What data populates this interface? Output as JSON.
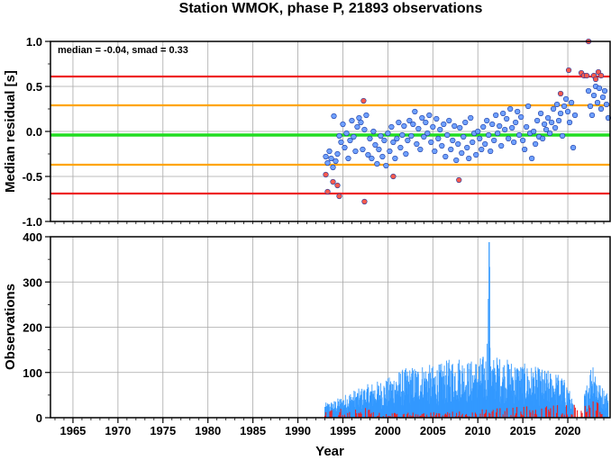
{
  "chart_data": {
    "title": "Station WMOK, phase P, 21893 observations",
    "xlabel": "Year",
    "x_ticks": [
      "1965",
      "1970",
      "1975",
      "1980",
      "1985",
      "1990",
      "1995",
      "2000",
      "2005",
      "2010",
      "2015",
      "2020"
    ],
    "xlim": [
      1962.5,
      2024.7
    ],
    "grid": true,
    "panels": [
      {
        "type": "scatter",
        "ylabel": "Median residual [s]",
        "ylim": [
          -1.0,
          1.0
        ],
        "y_ticks": [
          "-1.0",
          "-0.5",
          "0.0",
          "0.5",
          "1.0"
        ],
        "annotation": "median = -0.04, smad = 0.33",
        "reference_lines": [
          {
            "name": "median",
            "y": -0.04,
            "color": "#22dd22"
          },
          {
            "name": "+1 smad",
            "y": 0.29,
            "color": "#ffa500"
          },
          {
            "name": "-1 smad",
            "y": -0.37,
            "color": "#ffa500"
          },
          {
            "name": "+2 smad",
            "y": 0.61,
            "color": "#ee2222"
          },
          {
            "name": "-2 smad",
            "y": -0.69,
            "color": "#ee2222"
          }
        ],
        "series": [
          {
            "color": "#6fa0ff",
            "points": [
              [
                1993.1,
                -0.28
              ],
              [
                1993.3,
                -0.35
              ],
              [
                1993.5,
                -0.22
              ],
              [
                1993.7,
                -0.3
              ],
              [
                1993.9,
                -0.4
              ],
              [
                1994.0,
                0.17
              ],
              [
                1994.2,
                -0.33
              ],
              [
                1994.4,
                -0.25
              ],
              [
                1994.6,
                -0.05
              ],
              [
                1994.8,
                -0.12
              ],
              [
                1995.0,
                0.08
              ],
              [
                1995.2,
                -0.18
              ],
              [
                1995.4,
                -0.02
              ],
              [
                1995.6,
                -0.3
              ],
              [
                1995.8,
                -0.1
              ],
              [
                1996.0,
                0.12
              ],
              [
                1996.2,
                -0.06
              ],
              [
                1996.4,
                -0.22
              ],
              [
                1996.6,
                0.05
              ],
              [
                1996.8,
                0.15
              ],
              [
                1997.0,
                0.1
              ],
              [
                1997.2,
                -0.2
              ],
              [
                1997.4,
                0.02
              ],
              [
                1997.6,
                0.18
              ],
              [
                1997.8,
                -0.26
              ],
              [
                1998.0,
                -0.08
              ],
              [
                1998.2,
                -0.3
              ],
              [
                1998.4,
                0.0
              ],
              [
                1998.6,
                -0.15
              ],
              [
                1998.8,
                -0.36
              ],
              [
                1999.0,
                -0.2
              ],
              [
                1999.2,
                -0.05
              ],
              [
                1999.4,
                -0.28
              ],
              [
                1999.6,
                -0.1
              ],
              [
                1999.8,
                -0.38
              ],
              [
                2000.0,
                -0.02
              ],
              [
                2000.2,
                -0.22
              ],
              [
                2000.4,
                0.05
              ],
              [
                2000.6,
                -0.12
              ],
              [
                2000.8,
                -0.3
              ],
              [
                2001.0,
                -0.08
              ],
              [
                2001.2,
                0.1
              ],
              [
                2001.4,
                -0.18
              ],
              [
                2001.6,
                -0.04
              ],
              [
                2001.8,
                0.06
              ],
              [
                2002.0,
                -0.25
              ],
              [
                2002.2,
                -0.1
              ],
              [
                2002.4,
                0.12
              ],
              [
                2002.6,
                -0.05
              ],
              [
                2002.8,
                0.08
              ],
              [
                2003.0,
                0.22
              ],
              [
                2003.2,
                -0.14
              ],
              [
                2003.4,
                0.03
              ],
              [
                2003.6,
                -0.2
              ],
              [
                2003.8,
                0.15
              ],
              [
                2004.0,
                -0.06
              ],
              [
                2004.2,
                0.1
              ],
              [
                2004.4,
                -0.02
              ],
              [
                2004.6,
                0.18
              ],
              [
                2004.8,
                -0.12
              ],
              [
                2005.0,
                0.05
              ],
              [
                2005.2,
                -0.22
              ],
              [
                2005.4,
                0.14
              ],
              [
                2005.6,
                -0.08
              ],
              [
                2005.8,
                0.02
              ],
              [
                2006.0,
                -0.16
              ],
              [
                2006.2,
                0.08
              ],
              [
                2006.4,
                -0.28
              ],
              [
                2006.6,
                -0.04
              ],
              [
                2006.8,
                0.12
              ],
              [
                2007.0,
                -0.2
              ],
              [
                2007.2,
                -0.1
              ],
              [
                2007.4,
                0.06
              ],
              [
                2007.6,
                -0.32
              ],
              [
                2007.8,
                -0.14
              ],
              [
                2008.0,
                0.04
              ],
              [
                2008.2,
                -0.24
              ],
              [
                2008.4,
                -0.06
              ],
              [
                2008.6,
                0.1
              ],
              [
                2008.8,
                -0.18
              ],
              [
                2009.0,
                -0.3
              ],
              [
                2009.2,
                0.15
              ],
              [
                2009.4,
                -0.12
              ],
              [
                2009.6,
                -0.02
              ],
              [
                2009.8,
                -0.26
              ],
              [
                2010.0,
                0.0
              ],
              [
                2010.2,
                -0.08
              ],
              [
                2010.4,
                -0.2
              ],
              [
                2010.6,
                0.05
              ],
              [
                2010.8,
                -0.14
              ],
              [
                2011.0,
                0.12
              ],
              [
                2011.2,
                -0.04
              ],
              [
                2011.4,
                -0.22
              ],
              [
                2011.6,
                0.08
              ],
              [
                2011.8,
                -0.1
              ],
              [
                2012.0,
                0.18
              ],
              [
                2012.2,
                -0.02
              ],
              [
                2012.4,
                0.06
              ],
              [
                2012.6,
                -0.16
              ],
              [
                2012.8,
                0.2
              ],
              [
                2013.0,
                0.02
              ],
              [
                2013.2,
                0.14
              ],
              [
                2013.4,
                -0.08
              ],
              [
                2013.6,
                0.25
              ],
              [
                2013.8,
                0.04
              ],
              [
                2014.0,
                -0.12
              ],
              [
                2014.2,
                0.1
              ],
              [
                2014.4,
                0.22
              ],
              [
                2014.6,
                -0.04
              ],
              [
                2014.8,
                0.16
              ],
              [
                2015.0,
                -0.1
              ],
              [
                2015.2,
                -0.2
              ],
              [
                2015.4,
                0.05
              ],
              [
                2015.6,
                0.28
              ],
              [
                2015.8,
                -0.02
              ],
              [
                2016.0,
                -0.3
              ],
              [
                2016.2,
                0.0
              ],
              [
                2016.4,
                -0.14
              ],
              [
                2016.6,
                0.12
              ],
              [
                2016.8,
                -0.06
              ],
              [
                2017.0,
                0.2
              ],
              [
                2017.2,
                -0.08
              ],
              [
                2017.4,
                0.08
              ],
              [
                2017.6,
                0.02
              ],
              [
                2017.8,
                0.15
              ],
              [
                2018.0,
                -0.02
              ],
              [
                2018.2,
                0.1
              ],
              [
                2018.4,
                0.25
              ],
              [
                2018.6,
                0.04
              ],
              [
                2018.8,
                0.3
              ],
              [
                2019.0,
                0.12
              ],
              [
                2019.2,
                0.2
              ],
              [
                2019.4,
                -0.05
              ],
              [
                2019.6,
                0.28
              ],
              [
                2019.8,
                0.36
              ],
              [
                2020.0,
                0.22
              ],
              [
                2020.2,
                0.1
              ],
              [
                2020.4,
                0.32
              ],
              [
                2020.6,
                -0.18
              ],
              [
                2020.8,
                0.18
              ],
              [
                2022.3,
                0.45
              ],
              [
                2022.5,
                0.28
              ],
              [
                2022.7,
                0.18
              ],
              [
                2022.9,
                0.4
              ],
              [
                2023.1,
                0.5
              ],
              [
                2023.3,
                0.32
              ],
              [
                2023.5,
                0.48
              ],
              [
                2023.7,
                0.25
              ],
              [
                2023.9,
                0.38
              ],
              [
                2024.1,
                0.45
              ],
              [
                2024.3,
                0.3
              ],
              [
                2024.5,
                0.15
              ]
            ]
          },
          {
            "color": "#ff5a4d",
            "points": [
              [
                1993.1,
                -0.48
              ],
              [
                1993.3,
                -0.67
              ],
              [
                1993.9,
                -0.56
              ],
              [
                1994.4,
                -0.6
              ],
              [
                1994.6,
                -0.72
              ],
              [
                1997.3,
                0.34
              ],
              [
                1997.4,
                -0.78
              ],
              [
                2000.6,
                -0.5
              ],
              [
                2007.9,
                -0.54
              ],
              [
                2019.2,
                0.42
              ],
              [
                2021.5,
                0.65
              ],
              [
                2021.8,
                0.62
              ],
              [
                2022.1,
                0.62
              ],
              [
                2022.3,
                1.0
              ],
              [
                2022.9,
                0.62
              ],
              [
                2023.1,
                0.58
              ],
              [
                2023.4,
                0.66
              ],
              [
                2023.7,
                0.62
              ],
              [
                2020.1,
                0.68
              ]
            ]
          }
        ]
      },
      {
        "type": "bar",
        "ylabel": "Observations",
        "ylim": [
          0,
          400
        ],
        "y_ticks": [
          "0",
          "100",
          "200",
          "300",
          "400"
        ],
        "series": [
          {
            "color": "#3399ff",
            "note": "observations per period",
            "envelope": [
              [
                1993.0,
                30
              ],
              [
                1994.0,
                35
              ],
              [
                1995.0,
                45
              ],
              [
                1996.0,
                55
              ],
              [
                1997.0,
                60
              ],
              [
                1998.0,
                70
              ],
              [
                1999.0,
                75
              ],
              [
                2000.0,
                80
              ],
              [
                2001.0,
                95
              ],
              [
                2002.0,
                100
              ],
              [
                2003.0,
                105
              ],
              [
                2004.0,
                110
              ],
              [
                2005.0,
                105
              ],
              [
                2006.0,
                110
              ],
              [
                2007.0,
                120
              ],
              [
                2008.0,
                125
              ],
              [
                2009.0,
                115
              ],
              [
                2010.0,
                120
              ],
              [
                2011.0,
                130
              ],
              [
                2011.25,
                388
              ],
              [
                2011.5,
                120
              ],
              [
                2012.0,
                125
              ],
              [
                2013.0,
                120
              ],
              [
                2014.0,
                115
              ],
              [
                2015.0,
                110
              ],
              [
                2016.0,
                105
              ],
              [
                2017.0,
                100
              ],
              [
                2018.0,
                95
              ],
              [
                2019.0,
                90
              ],
              [
                2020.0,
                70
              ],
              [
                2021.0,
                0
              ],
              [
                2022.0,
                60
              ],
              [
                2022.8,
                130
              ],
              [
                2023.5,
                70
              ],
              [
                2024.5,
                50
              ]
            ]
          },
          {
            "color": "#ee2222",
            "note": "outlier observations",
            "envelope": [
              [
                1993.0,
                20
              ],
              [
                1997.0,
                25
              ],
              [
                2000.0,
                10
              ],
              [
                2008.0,
                15
              ],
              [
                2018.0,
                30
              ],
              [
                2022.0,
                30
              ],
              [
                2023.0,
                40
              ],
              [
                2024.0,
                20
              ]
            ]
          }
        ]
      }
    ]
  }
}
